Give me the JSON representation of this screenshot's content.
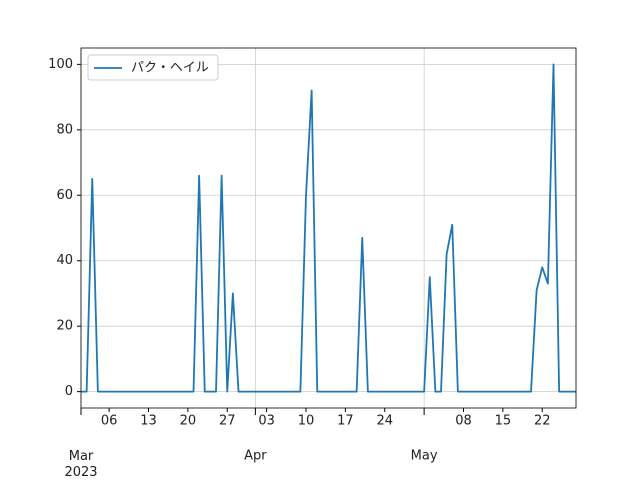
{
  "chart_data": {
    "type": "line",
    "x": [
      "2023-03-01",
      "2023-03-02",
      "2023-03-03",
      "2023-03-04",
      "2023-03-05",
      "2023-03-06",
      "2023-03-07",
      "2023-03-08",
      "2023-03-09",
      "2023-03-10",
      "2023-03-11",
      "2023-03-12",
      "2023-03-13",
      "2023-03-14",
      "2023-03-15",
      "2023-03-16",
      "2023-03-17",
      "2023-03-18",
      "2023-03-19",
      "2023-03-20",
      "2023-03-21",
      "2023-03-22",
      "2023-03-23",
      "2023-03-24",
      "2023-03-25",
      "2023-03-26",
      "2023-03-27",
      "2023-03-28",
      "2023-03-29",
      "2023-03-30",
      "2023-03-31",
      "2023-04-01",
      "2023-04-02",
      "2023-04-03",
      "2023-04-04",
      "2023-04-05",
      "2023-04-06",
      "2023-04-07",
      "2023-04-08",
      "2023-04-09",
      "2023-04-10",
      "2023-04-11",
      "2023-04-12",
      "2023-04-13",
      "2023-04-14",
      "2023-04-15",
      "2023-04-16",
      "2023-04-17",
      "2023-04-18",
      "2023-04-19",
      "2023-04-20",
      "2023-04-21",
      "2023-04-22",
      "2023-04-23",
      "2023-04-24",
      "2023-04-25",
      "2023-04-26",
      "2023-04-27",
      "2023-04-28",
      "2023-04-29",
      "2023-04-30",
      "2023-05-01",
      "2023-05-02",
      "2023-05-03",
      "2023-05-04",
      "2023-05-05",
      "2023-05-06",
      "2023-05-07",
      "2023-05-08",
      "2023-05-09",
      "2023-05-10",
      "2023-05-11",
      "2023-05-12",
      "2023-05-13",
      "2023-05-14",
      "2023-05-15",
      "2023-05-16",
      "2023-05-17",
      "2023-05-18",
      "2023-05-19",
      "2023-05-20",
      "2023-05-21",
      "2023-05-22",
      "2023-05-23",
      "2023-05-24",
      "2023-05-25",
      "2023-05-26",
      "2023-05-27",
      "2023-05-28"
    ],
    "series": [
      {
        "name": "パク・ヘイル",
        "color": "#1f77b4",
        "values": [
          0,
          0,
          65,
          0,
          0,
          0,
          0,
          0,
          0,
          0,
          0,
          0,
          0,
          0,
          0,
          0,
          0,
          0,
          0,
          0,
          0,
          66,
          0,
          0,
          0,
          66,
          0,
          30,
          0,
          0,
          0,
          0,
          0,
          0,
          0,
          0,
          0,
          0,
          0,
          0,
          60,
          92,
          0,
          0,
          0,
          0,
          0,
          0,
          0,
          0,
          47,
          0,
          0,
          0,
          0,
          0,
          0,
          0,
          0,
          0,
          0,
          0,
          35,
          0,
          0,
          42,
          51,
          0,
          0,
          0,
          0,
          0,
          0,
          0,
          0,
          0,
          0,
          0,
          0,
          0,
          0,
          31,
          38,
          33,
          100,
          0,
          0,
          0,
          0
        ]
      }
    ],
    "xlim": [
      "2023-03-01",
      "2023-05-28"
    ],
    "xticks": [
      {
        "value": "2023-03-01",
        "label": "Mar\n2023"
      },
      {
        "value": "2023-04-01",
        "label": "Apr"
      },
      {
        "value": "2023-05-01",
        "label": "May"
      }
    ],
    "xticks_minor": [
      {
        "value": "2023-03-06",
        "label": "06"
      },
      {
        "value": "2023-03-13",
        "label": "13"
      },
      {
        "value": "2023-03-20",
        "label": "20"
      },
      {
        "value": "2023-03-27",
        "label": "27"
      },
      {
        "value": "2023-04-03",
        "label": "03"
      },
      {
        "value": "2023-04-10",
        "label": "10"
      },
      {
        "value": "2023-04-17",
        "label": "17"
      },
      {
        "value": "2023-04-24",
        "label": "24"
      },
      {
        "value": "2023-05-08",
        "label": "08"
      },
      {
        "value": "2023-05-15",
        "label": "15"
      },
      {
        "value": "2023-05-22",
        "label": "22"
      }
    ],
    "ylim": [
      -5,
      105
    ],
    "yticks": [
      0,
      20,
      40,
      60,
      80,
      100
    ],
    "grid": true,
    "legend": "upper left"
  }
}
